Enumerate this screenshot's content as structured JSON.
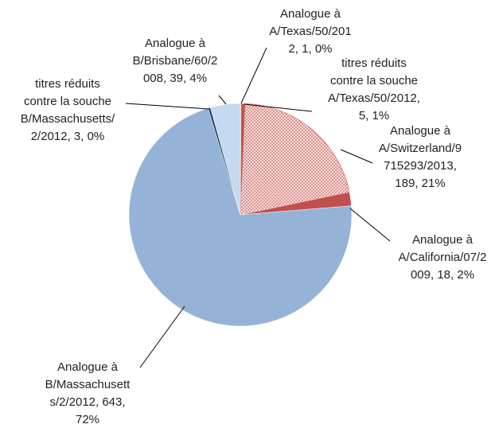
{
  "chart_data": {
    "type": "pie",
    "values": [
      1,
      5,
      189,
      18,
      643,
      3,
      39
    ],
    "value_labels": [
      "Analogue à A/Texas/50/2012, 1, 0%",
      "titres réduits contre la souche A/Texas/50/2012, 5, 1%",
      "Analogue à A/Switzerland/9715293/2013, 189, 21%",
      "Analogue à A/California/07/2009, 18, 2%",
      "Analogue à B/Massachusetts/2/2012, 643, 72%",
      "titres réduits contre la souche B/Massachusetts/2/2012, 3, 0%",
      "Analogue à B/Brisbane/60/2008, 39, 4%"
    ],
    "colors": [
      "#7f1f1f",
      "#c0504d",
      "#d9736f",
      "#c0504d",
      "#95b3d7",
      "#1f3864",
      "#c5d9f1"
    ],
    "hatch": [
      false,
      false,
      true,
      false,
      false,
      false,
      false
    ]
  }
}
